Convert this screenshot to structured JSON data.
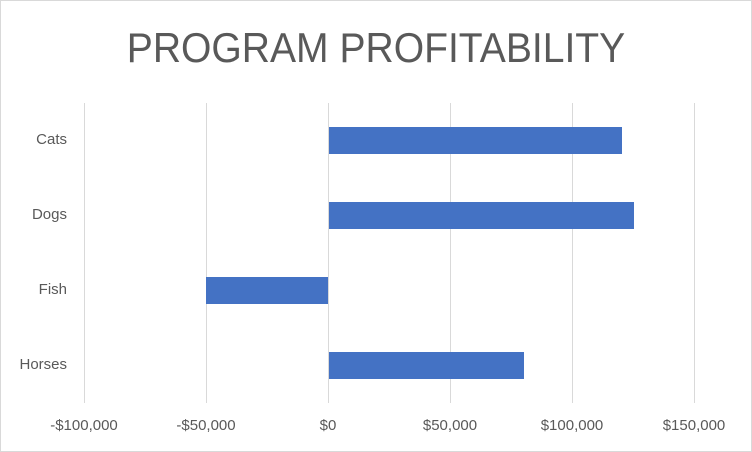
{
  "chart_data": {
    "type": "bar",
    "orientation": "horizontal",
    "title": "PROGRAM PROFITABILITY",
    "categories": [
      "Cats",
      "Dogs",
      "Fish",
      "Horses"
    ],
    "values": [
      120000,
      125000,
      -50000,
      80000
    ],
    "xlabel": "",
    "ylabel": "",
    "xlim": [
      -100000,
      150000
    ],
    "x_ticks": [
      -100000,
      -50000,
      0,
      50000,
      100000,
      150000
    ],
    "x_tick_labels": [
      "-$100,000",
      "-$50,000",
      "$0",
      "$50,000",
      "$100,000",
      "$150,000"
    ],
    "grid": "vertical",
    "legend": "none",
    "bar_color": "#4472c4"
  },
  "colors": {
    "bar": "#4472c4",
    "grid": "#d9d9d9",
    "text": "#595959",
    "border": "#d9d9d9"
  }
}
